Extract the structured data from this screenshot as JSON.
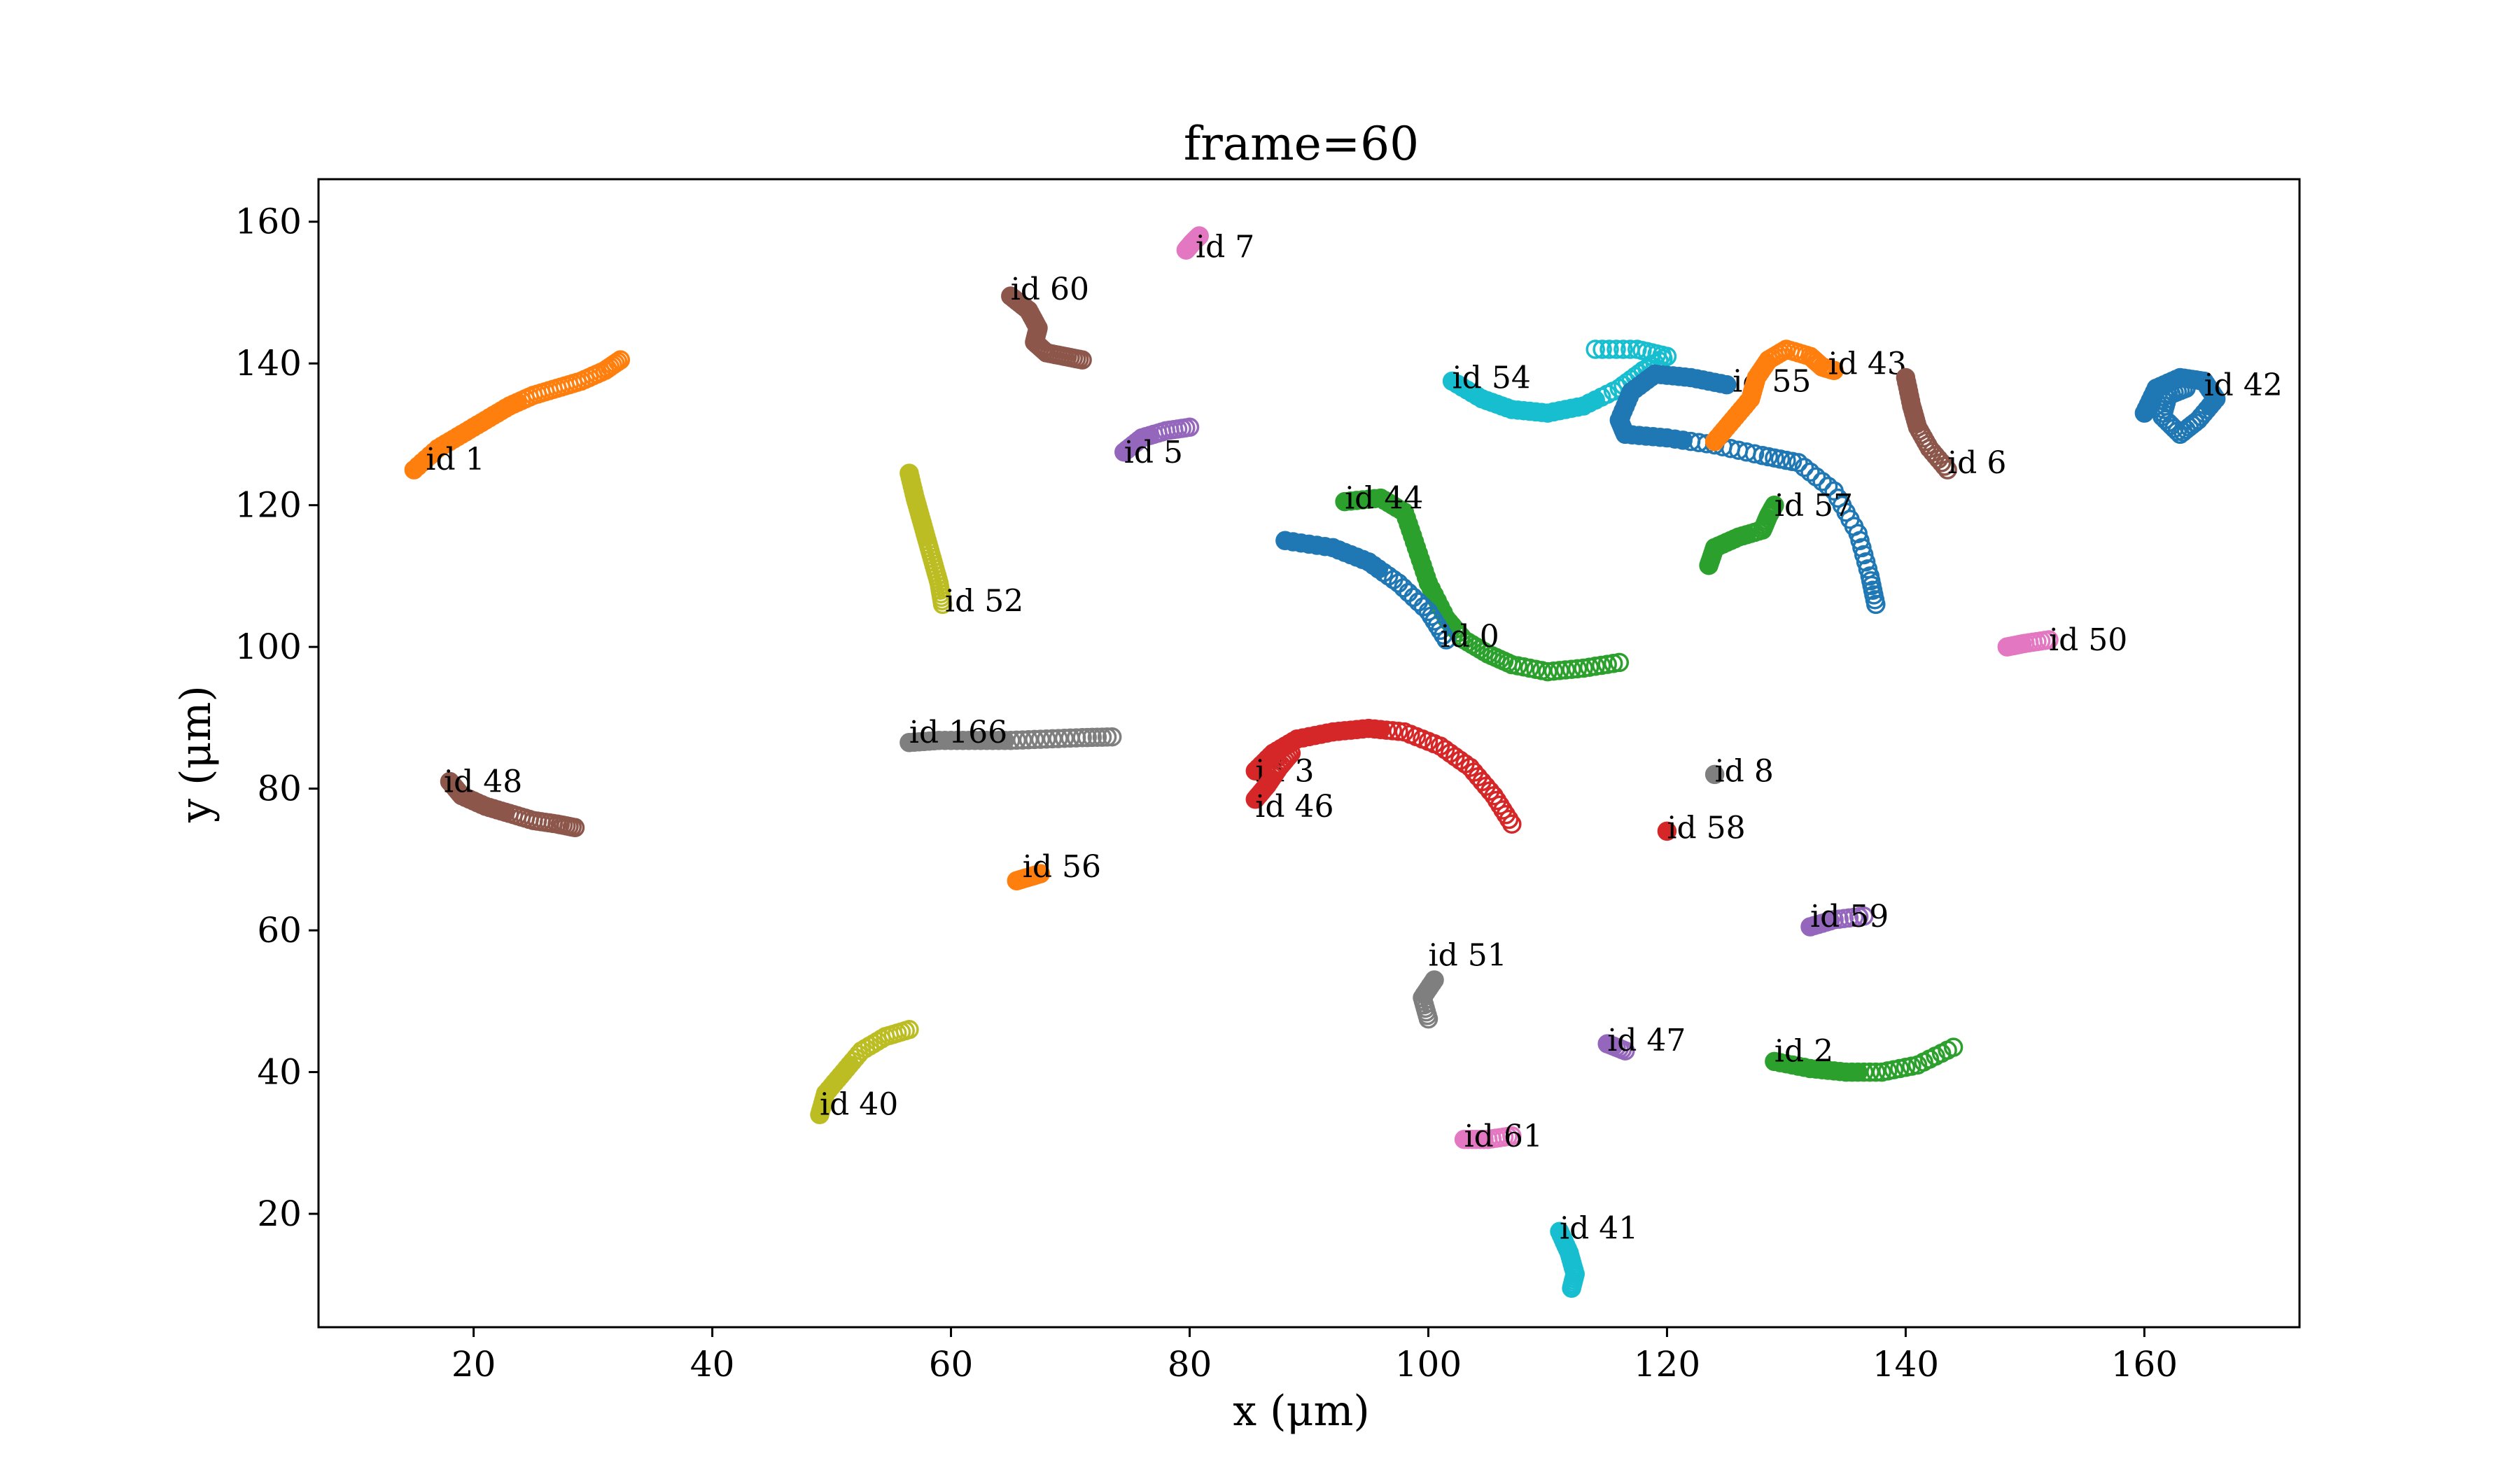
{
  "chart_data": {
    "type": "scatter",
    "title": "frame=60",
    "xlabel": "x (μm)",
    "ylabel": "y (μm)",
    "xlim": [
      7,
      173
    ],
    "ylim": [
      4,
      166
    ],
    "xticks": [
      20,
      40,
      60,
      80,
      100,
      120,
      140,
      160
    ],
    "yticks": [
      20,
      40,
      60,
      80,
      100,
      120,
      140,
      160
    ],
    "grid": false,
    "legend": "none",
    "series": [
      {
        "label": "id 1",
        "color": "#ff7f0e",
        "label_at": [
          16,
          125
        ],
        "points": [
          [
            15,
            125
          ],
          [
            17,
            128
          ],
          [
            19,
            130
          ],
          [
            21,
            132
          ],
          [
            23,
            134
          ],
          [
            25,
            135.5
          ],
          [
            27,
            136.5
          ],
          [
            29,
            137.5
          ],
          [
            31,
            139
          ],
          [
            32.3,
            140.5
          ]
        ]
      },
      {
        "label": "id 60",
        "color": "#8c564b",
        "label_at": [
          65,
          149
        ],
        "points": [
          [
            65,
            149.5
          ],
          [
            66.5,
            147.5
          ],
          [
            67.3,
            145
          ],
          [
            67,
            143
          ],
          [
            68,
            141.5
          ],
          [
            69.5,
            141
          ],
          [
            71,
            140.5
          ]
        ]
      },
      {
        "label": "id 7",
        "color": "#e377c2",
        "label_at": [
          80.5,
          155
        ],
        "points": [
          [
            79.7,
            156
          ],
          [
            80.2,
            157
          ],
          [
            80.8,
            158
          ]
        ]
      },
      {
        "label": "id 5",
        "color": "#9467bd",
        "label_at": [
          74.5,
          126
        ],
        "points": [
          [
            74.5,
            127.5
          ],
          [
            76,
            129.5
          ],
          [
            78,
            130.5
          ],
          [
            80,
            131
          ]
        ]
      },
      {
        "label": "id 52",
        "color": "#bcbd22",
        "label_at": [
          59.5,
          105
        ],
        "points": [
          [
            56.5,
            124.5
          ],
          [
            57,
            121
          ],
          [
            57.5,
            118
          ],
          [
            58,
            115
          ],
          [
            58.5,
            112
          ],
          [
            59,
            109
          ],
          [
            59.3,
            106
          ]
        ]
      },
      {
        "label": "id 48",
        "color": "#8c564b",
        "label_at": [
          17.5,
          79.5
        ],
        "points": [
          [
            18,
            81
          ],
          [
            19,
            79
          ],
          [
            21,
            77.5
          ],
          [
            23,
            76.5
          ],
          [
            25,
            75.5
          ],
          [
            27,
            75
          ],
          [
            28.5,
            74.5
          ]
        ]
      },
      {
        "label": "id 166",
        "color": "#7f7f7f",
        "label_at": [
          56.5,
          86.5
        ],
        "points": [
          [
            56.5,
            86.5
          ],
          [
            59,
            86.8
          ],
          [
            62,
            86.8
          ],
          [
            65,
            86.8
          ],
          [
            68,
            87
          ],
          [
            71,
            87.2
          ],
          [
            73.5,
            87.3
          ]
        ]
      },
      {
        "label": "id 56",
        "color": "#ff7f0e",
        "label_at": [
          66,
          67.5
        ],
        "points": [
          [
            65.5,
            67
          ],
          [
            66.5,
            67.5
          ],
          [
            67.5,
            68
          ]
        ]
      },
      {
        "label": "id 40",
        "color": "#bcbd22",
        "label_at": [
          49,
          34
        ],
        "points": [
          [
            49,
            34
          ],
          [
            49.5,
            37
          ],
          [
            51,
            40
          ],
          [
            52.5,
            43
          ],
          [
            54.5,
            45
          ],
          [
            56.5,
            46
          ]
        ]
      },
      {
        "label": "id 44",
        "color": "#2ca02c",
        "label_at": [
          93,
          119.5
        ],
        "points": [
          [
            93,
            120.5
          ],
          [
            96,
            121
          ],
          [
            98,
            119
          ],
          [
            99,
            114
          ],
          [
            100,
            109
          ],
          [
            101.5,
            104
          ],
          [
            103,
            101
          ],
          [
            105,
            99
          ],
          [
            107,
            97.5
          ],
          [
            110,
            96.5
          ],
          [
            113,
            97
          ],
          [
            116,
            97.8
          ]
        ]
      },
      {
        "label": "id 0",
        "color": "#1f77b4",
        "label_at": [
          101,
          100
        ],
        "points": [
          [
            88,
            115
          ],
          [
            92,
            114
          ],
          [
            95,
            112
          ],
          [
            97.5,
            109
          ],
          [
            100,
            105
          ],
          [
            101.5,
            101
          ]
        ]
      },
      {
        "label": "id 3",
        "color": "#d62728",
        "label_at": [
          85.5,
          81
        ],
        "points": [
          [
            85.5,
            82.5
          ],
          [
            87,
            85
          ],
          [
            89,
            87
          ],
          [
            92,
            88
          ],
          [
            95,
            88.5
          ],
          [
            98,
            88
          ],
          [
            101,
            86
          ],
          [
            103.5,
            83
          ],
          [
            105.5,
            79
          ],
          [
            107,
            75
          ]
        ]
      },
      {
        "label": "id 46",
        "color": "#d62728",
        "label_at": [
          85.5,
          76
        ],
        "points": [
          [
            85.5,
            78.5
          ],
          [
            86.5,
            80.5
          ],
          [
            87.5,
            83
          ],
          [
            88.5,
            85
          ]
        ]
      },
      {
        "label": "id 54",
        "color": "#17becf",
        "label_at": [
          102,
          136.5
        ],
        "points": [
          [
            102,
            137.5
          ],
          [
            104.5,
            135
          ],
          [
            107,
            133.5
          ],
          [
            110,
            133
          ],
          [
            113,
            134
          ],
          [
            116,
            136.5
          ],
          [
            118,
            139
          ],
          [
            120,
            141
          ],
          [
            117.5,
            142
          ],
          [
            114,
            142
          ]
        ]
      },
      {
        "label": "id 55",
        "color": "#1f77b4",
        "label_at": [
          125.5,
          136
        ],
        "points": [
          [
            125,
            137
          ],
          [
            122,
            138
          ],
          [
            119,
            138.5
          ],
          [
            117,
            136
          ],
          [
            116,
            132
          ],
          [
            116.5,
            130
          ],
          [
            120,
            129.5
          ],
          [
            124,
            128.5
          ],
          [
            128,
            127
          ],
          [
            131,
            126
          ],
          [
            134,
            122
          ],
          [
            136,
            116
          ],
          [
            137,
            110
          ],
          [
            137.5,
            106
          ]
        ]
      },
      {
        "label": "id 43",
        "color": "#ff7f0e",
        "label_at": [
          133.5,
          138.5
        ],
        "points": [
          [
            124,
            129
          ],
          [
            125.5,
            132
          ],
          [
            127,
            135
          ],
          [
            127.5,
            138
          ],
          [
            128.5,
            140.5
          ],
          [
            130,
            142
          ],
          [
            132,
            141
          ],
          [
            133,
            139.5
          ],
          [
            134,
            139
          ]
        ]
      },
      {
        "label": "id 6",
        "color": "#8c564b",
        "label_at": [
          143.5,
          124.5
        ],
        "points": [
          [
            140,
            138
          ],
          [
            140.5,
            134
          ],
          [
            141,
            131
          ],
          [
            142,
            128
          ],
          [
            143.5,
            125
          ]
        ]
      },
      {
        "label": "id 42",
        "color": "#1f77b4",
        "label_at": [
          165,
          135.5
        ],
        "points": [
          [
            160,
            133
          ],
          [
            161,
            136.5
          ],
          [
            163,
            138
          ],
          [
            165,
            137.5
          ],
          [
            166,
            135
          ],
          [
            164.5,
            132
          ],
          [
            163,
            130
          ],
          [
            161.5,
            132.5
          ],
          [
            162,
            135.5
          ],
          [
            163.5,
            136.5
          ]
        ]
      },
      {
        "label": "id 57",
        "color": "#2ca02c",
        "label_at": [
          129,
          118.5
        ],
        "points": [
          [
            123.5,
            111.5
          ],
          [
            124,
            114
          ],
          [
            126,
            115.5
          ],
          [
            128,
            116.5
          ],
          [
            128.5,
            118.5
          ],
          [
            129,
            120
          ]
        ]
      },
      {
        "label": "id 50",
        "color": "#e377c2",
        "label_at": [
          152,
          99.5
        ],
        "points": [
          [
            148.5,
            100
          ],
          [
            150,
            100.5
          ],
          [
            152,
            101
          ]
        ]
      },
      {
        "label": "id 8",
        "color": "#7f7f7f",
        "label_at": [
          124,
          81
        ],
        "points": [
          [
            124,
            82
          ]
        ]
      },
      {
        "label": "id 58",
        "color": "#d62728",
        "label_at": [
          120,
          73
        ],
        "points": [
          [
            120,
            74
          ]
        ]
      },
      {
        "label": "id 59",
        "color": "#9467bd",
        "label_at": [
          132,
          60.5
        ],
        "points": [
          [
            132,
            60.5
          ],
          [
            134,
            61.5
          ],
          [
            136.5,
            62
          ]
        ]
      },
      {
        "label": "id 51",
        "color": "#7f7f7f",
        "label_at": [
          100,
          55
        ],
        "points": [
          [
            100.5,
            53
          ],
          [
            99.5,
            50.5
          ],
          [
            100,
            47.5
          ]
        ]
      },
      {
        "label": "id 47",
        "color": "#9467bd",
        "label_at": [
          115,
          43
        ],
        "points": [
          [
            115,
            44
          ],
          [
            116.5,
            43
          ]
        ]
      },
      {
        "label": "id 2",
        "color": "#2ca02c",
        "label_at": [
          129,
          41.5
        ],
        "points": [
          [
            129,
            41.5
          ],
          [
            132,
            40.5
          ],
          [
            135,
            40
          ],
          [
            138,
            40
          ],
          [
            141,
            41
          ],
          [
            144,
            43.5
          ]
        ]
      },
      {
        "label": "id 61",
        "color": "#e377c2",
        "label_at": [
          103,
          29.5
        ],
        "points": [
          [
            103,
            30.5
          ],
          [
            105,
            30.5
          ],
          [
            107,
            31
          ]
        ]
      },
      {
        "label": "id 41",
        "color": "#17becf",
        "label_at": [
          111,
          16.5
        ],
        "points": [
          [
            111,
            17.5
          ],
          [
            111.8,
            14.5
          ],
          [
            112.3,
            11.5
          ],
          [
            112,
            9.5
          ]
        ]
      }
    ]
  }
}
